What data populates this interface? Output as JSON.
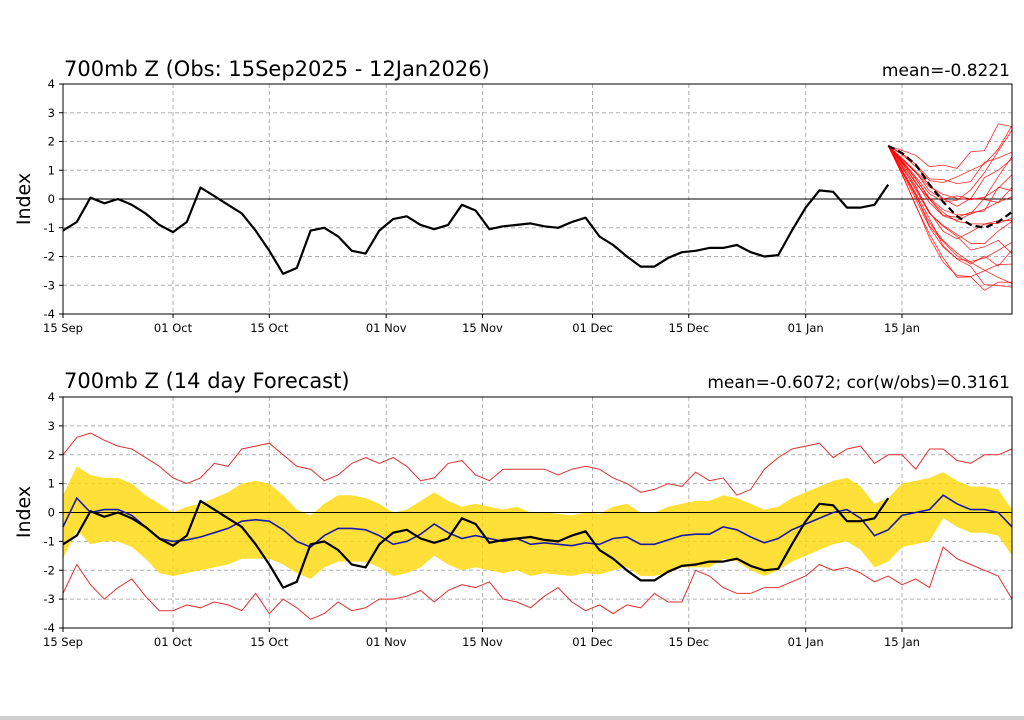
{
  "colors": {
    "obs": "#000000",
    "ens": "#ff0000",
    "envelope": "#e03030",
    "band": "#ffd700",
    "mean": "#1a1aa8",
    "grid": "#b0b0b0"
  },
  "x_tick_labels": [
    "15 Sep",
    "01 Oct",
    "15 Oct",
    "01 Nov",
    "15 Nov",
    "01 Dec",
    "15 Dec",
    "01 Jan",
    "15 Jan"
  ],
  "chart_data": [
    {
      "type": "line",
      "title": "700mb Z (Obs: 15Sep2025 - 12Jan2026)",
      "stat": "mean=-0.8221",
      "ylabel": "Index",
      "xlabel": "",
      "xlim_days": [
        0,
        138
      ],
      "ylim": [
        -4,
        4
      ],
      "yticks": [
        -4,
        -3,
        -2,
        -1,
        0,
        1,
        2,
        3,
        4
      ],
      "x_ticks_days": [
        0,
        16,
        30,
        47,
        61,
        77,
        91,
        108,
        122
      ],
      "grid": true,
      "series": [
        {
          "name": "observed",
          "style": "solid-black",
          "x": [
            0,
            2,
            4,
            6,
            8,
            10,
            12,
            14,
            16,
            18,
            20,
            22,
            24,
            26,
            28,
            30,
            32,
            34,
            36,
            38,
            40,
            42,
            44,
            46,
            48,
            50,
            52,
            54,
            56,
            58,
            60,
            62,
            64,
            66,
            68,
            70,
            72,
            74,
            76,
            78,
            80,
            82,
            84,
            86,
            88,
            90,
            92,
            94,
            96,
            98,
            100,
            102,
            104,
            106,
            108,
            110,
            112,
            114,
            116,
            118,
            120
          ],
          "values": [
            -1.1,
            -0.8,
            0.05,
            -0.15,
            0.0,
            -0.2,
            -0.5,
            -0.9,
            -1.15,
            -0.8,
            0.4,
            0.1,
            -0.2,
            -0.5,
            -1.1,
            -1.8,
            -2.6,
            -2.4,
            -1.1,
            -1.0,
            -1.3,
            -1.8,
            -1.9,
            -1.1,
            -0.7,
            -0.6,
            -0.9,
            -1.05,
            -0.9,
            -0.2,
            -0.4,
            -1.05,
            -0.95,
            -0.9,
            -0.85,
            -0.95,
            -1.0,
            -0.8,
            -0.65,
            -1.3,
            -1.6,
            -2.0,
            -2.35,
            -2.35,
            -2.05,
            -1.85,
            -1.8,
            -1.7,
            -1.7,
            -1.6,
            -1.85,
            -2.0,
            -1.95,
            -1.1,
            -0.3,
            0.3,
            0.25,
            -0.3,
            -0.3,
            -0.2,
            0.5
          ]
        },
        {
          "name": "ensemble-mean",
          "style": "dashed-black",
          "x": [
            120,
            122,
            124,
            126,
            128,
            130,
            132,
            134,
            136,
            138
          ],
          "values": [
            1.85,
            1.6,
            1.2,
            0.5,
            -0.1,
            -0.6,
            -0.9,
            -1.0,
            -0.8,
            -0.45
          ]
        }
      ],
      "ensemble_members_approx_count": 20,
      "ensemble_range_at_end": [
        -3.3,
        2.8
      ]
    },
    {
      "type": "line",
      "title": "700mb Z (14 day Forecast)",
      "stat": "mean=-0.6072; cor(w/obs)=0.3161",
      "ylabel": "Index",
      "xlabel": "",
      "xlim_days": [
        0,
        138
      ],
      "ylim": [
        -4,
        4
      ],
      "yticks": [
        -4,
        -3,
        -2,
        -1,
        0,
        1,
        2,
        3,
        4
      ],
      "x_ticks_days": [
        0,
        16,
        30,
        47,
        61,
        77,
        91,
        108,
        122
      ],
      "grid": true,
      "series": [
        {
          "name": "observed",
          "x": [
            0,
            2,
            4,
            6,
            8,
            10,
            12,
            14,
            16,
            18,
            20,
            22,
            24,
            26,
            28,
            30,
            32,
            34,
            36,
            38,
            40,
            42,
            44,
            46,
            48,
            50,
            52,
            54,
            56,
            58,
            60,
            62,
            64,
            66,
            68,
            70,
            72,
            74,
            76,
            78,
            80,
            82,
            84,
            86,
            88,
            90,
            92,
            94,
            96,
            98,
            100,
            102,
            104,
            106,
            108,
            110,
            112,
            114,
            116,
            118,
            120
          ],
          "values": [
            -1.1,
            -0.8,
            0.05,
            -0.15,
            0.0,
            -0.2,
            -0.5,
            -0.9,
            -1.15,
            -0.8,
            0.4,
            0.1,
            -0.2,
            -0.5,
            -1.1,
            -1.8,
            -2.6,
            -2.4,
            -1.1,
            -1.0,
            -1.3,
            -1.8,
            -1.9,
            -1.1,
            -0.7,
            -0.6,
            -0.9,
            -1.05,
            -0.9,
            -0.2,
            -0.4,
            -1.05,
            -0.95,
            -0.9,
            -0.85,
            -0.95,
            -1.0,
            -0.8,
            -0.65,
            -1.3,
            -1.6,
            -2.0,
            -2.35,
            -2.35,
            -2.05,
            -1.85,
            -1.8,
            -1.7,
            -1.7,
            -1.6,
            -1.85,
            -2.0,
            -1.95,
            -1.1,
            -0.3,
            0.3,
            0.25,
            -0.3,
            -0.3,
            -0.2,
            0.5
          ]
        },
        {
          "name": "forecast-mean",
          "x": [
            0,
            2,
            4,
            6,
            8,
            10,
            12,
            14,
            16,
            18,
            20,
            22,
            24,
            26,
            28,
            30,
            32,
            34,
            36,
            38,
            40,
            42,
            44,
            46,
            48,
            50,
            52,
            54,
            56,
            58,
            60,
            62,
            64,
            66,
            68,
            70,
            72,
            74,
            76,
            78,
            80,
            82,
            84,
            86,
            88,
            90,
            92,
            94,
            96,
            98,
            100,
            102,
            104,
            106,
            108,
            110,
            112,
            114,
            116,
            118,
            120,
            122,
            124,
            126,
            128,
            130,
            132,
            134,
            136,
            138
          ],
          "values": [
            -0.5,
            0.5,
            0.0,
            0.1,
            0.1,
            -0.1,
            -0.5,
            -0.9,
            -1.0,
            -0.95,
            -0.85,
            -0.7,
            -0.55,
            -0.3,
            -0.25,
            -0.3,
            -0.6,
            -1.0,
            -1.2,
            -0.8,
            -0.55,
            -0.55,
            -0.6,
            -0.8,
            -1.1,
            -1.0,
            -0.75,
            -0.4,
            -0.7,
            -0.9,
            -0.8,
            -0.9,
            -1.0,
            -0.9,
            -1.1,
            -1.05,
            -1.1,
            -1.15,
            -1.05,
            -1.1,
            -0.9,
            -0.85,
            -1.1,
            -1.1,
            -0.95,
            -0.8,
            -0.75,
            -0.75,
            -0.5,
            -0.6,
            -0.85,
            -1.05,
            -0.9,
            -0.6,
            -0.4,
            -0.2,
            0.0,
            0.1,
            -0.2,
            -0.8,
            -0.6,
            -0.1,
            0.0,
            0.1,
            0.6,
            0.3,
            0.1,
            0.1,
            0.0,
            -0.5
          ]
        },
        {
          "name": "spread-upper",
          "x": [
            0,
            2,
            4,
            6,
            8,
            10,
            12,
            14,
            16,
            18,
            20,
            22,
            24,
            26,
            28,
            30,
            32,
            34,
            36,
            38,
            40,
            42,
            44,
            46,
            48,
            50,
            52,
            54,
            56,
            58,
            60,
            62,
            64,
            66,
            68,
            70,
            72,
            74,
            76,
            78,
            80,
            82,
            84,
            86,
            88,
            90,
            92,
            94,
            96,
            98,
            100,
            102,
            104,
            106,
            108,
            110,
            112,
            114,
            116,
            118,
            120,
            122,
            124,
            126,
            128,
            130,
            132,
            134,
            136,
            138
          ],
          "values": [
            0.6,
            1.6,
            1.3,
            1.2,
            1.2,
            1.0,
            0.6,
            0.3,
            0.0,
            0.2,
            0.3,
            0.5,
            0.7,
            1.0,
            1.1,
            1.0,
            0.6,
            0.1,
            -0.1,
            0.3,
            0.6,
            0.6,
            0.5,
            0.3,
            0.0,
            0.1,
            0.4,
            0.7,
            0.4,
            0.2,
            0.3,
            0.2,
            0.1,
            0.2,
            0.0,
            0.0,
            -0.05,
            -0.1,
            0.0,
            -0.05,
            0.2,
            0.3,
            0.0,
            0.0,
            0.2,
            0.3,
            0.4,
            0.4,
            0.6,
            0.5,
            0.3,
            0.1,
            0.2,
            0.5,
            0.7,
            0.9,
            1.1,
            1.2,
            0.9,
            0.3,
            0.5,
            1.0,
            1.1,
            1.2,
            1.4,
            1.1,
            0.9,
            0.9,
            0.8,
            0.1
          ]
        },
        {
          "name": "spread-lower",
          "x": [
            0,
            2,
            4,
            6,
            8,
            10,
            12,
            14,
            16,
            18,
            20,
            22,
            24,
            26,
            28,
            30,
            32,
            34,
            36,
            38,
            40,
            42,
            44,
            46,
            48,
            50,
            52,
            54,
            56,
            58,
            60,
            62,
            64,
            66,
            68,
            70,
            72,
            74,
            76,
            78,
            80,
            82,
            84,
            86,
            88,
            90,
            92,
            94,
            96,
            98,
            100,
            102,
            104,
            106,
            108,
            110,
            112,
            114,
            116,
            118,
            120,
            122,
            124,
            126,
            128,
            130,
            132,
            134,
            136,
            138
          ],
          "values": [
            -1.6,
            -0.6,
            -1.1,
            -1.0,
            -1.0,
            -1.2,
            -1.6,
            -2.1,
            -2.2,
            -2.1,
            -2.0,
            -1.9,
            -1.8,
            -1.6,
            -1.6,
            -1.6,
            -1.8,
            -2.1,
            -2.3,
            -1.9,
            -1.7,
            -1.7,
            -1.7,
            -1.9,
            -2.2,
            -2.1,
            -1.9,
            -1.5,
            -1.8,
            -2.0,
            -1.9,
            -2.0,
            -2.1,
            -2.0,
            -2.2,
            -2.1,
            -2.15,
            -2.2,
            -2.1,
            -2.15,
            -2.0,
            -1.9,
            -2.2,
            -2.2,
            -2.1,
            -1.9,
            -1.9,
            -1.9,
            -1.6,
            -1.7,
            -2.0,
            -2.2,
            -2.0,
            -1.7,
            -1.5,
            -1.3,
            -1.1,
            -1.0,
            -1.3,
            -1.9,
            -1.7,
            -1.2,
            -1.1,
            -1.0,
            -0.2,
            -0.5,
            -0.7,
            -0.7,
            -0.8,
            -1.5
          ]
        },
        {
          "name": "envelope-upper",
          "x": [
            0,
            2,
            4,
            6,
            8,
            10,
            12,
            14,
            16,
            18,
            20,
            22,
            24,
            26,
            28,
            30,
            32,
            34,
            36,
            38,
            40,
            42,
            44,
            46,
            48,
            50,
            52,
            54,
            56,
            58,
            60,
            62,
            64,
            66,
            68,
            70,
            72,
            74,
            76,
            78,
            80,
            82,
            84,
            86,
            88,
            90,
            92,
            94,
            96,
            98,
            100,
            102,
            104,
            106,
            108,
            110,
            112,
            114,
            116,
            118,
            120,
            122,
            124,
            126,
            128,
            130,
            132,
            134,
            136,
            138
          ],
          "values": [
            2.0,
            2.6,
            2.75,
            2.5,
            2.3,
            2.2,
            1.9,
            1.6,
            1.2,
            1.0,
            1.2,
            1.7,
            1.6,
            2.2,
            2.3,
            2.4,
            2.0,
            1.6,
            1.5,
            1.1,
            1.3,
            1.7,
            1.9,
            1.7,
            1.9,
            1.6,
            1.1,
            1.2,
            1.7,
            1.8,
            1.3,
            1.1,
            1.5,
            1.5,
            1.5,
            1.5,
            1.3,
            1.5,
            1.6,
            1.5,
            1.2,
            1.0,
            0.7,
            0.8,
            1.0,
            0.9,
            1.4,
            1.1,
            1.2,
            0.6,
            0.8,
            1.5,
            1.9,
            2.2,
            2.3,
            2.4,
            1.9,
            2.2,
            2.3,
            1.7,
            2.0,
            2.0,
            1.5,
            2.2,
            2.2,
            1.8,
            1.7,
            2.0,
            2.0,
            2.2
          ]
        },
        {
          "name": "envelope-lower",
          "x": [
            0,
            2,
            4,
            6,
            8,
            10,
            12,
            14,
            16,
            18,
            20,
            22,
            24,
            26,
            28,
            30,
            32,
            34,
            36,
            38,
            40,
            42,
            44,
            46,
            48,
            50,
            52,
            54,
            56,
            58,
            60,
            62,
            64,
            66,
            68,
            70,
            72,
            74,
            76,
            78,
            80,
            82,
            84,
            86,
            88,
            90,
            92,
            94,
            96,
            98,
            100,
            102,
            104,
            106,
            108,
            110,
            112,
            114,
            116,
            118,
            120,
            122,
            124,
            126,
            128,
            130,
            132,
            134,
            136,
            138
          ],
          "values": [
            -2.8,
            -1.8,
            -2.5,
            -3.0,
            -2.6,
            -2.3,
            -2.9,
            -3.4,
            -3.4,
            -3.2,
            -3.3,
            -3.1,
            -3.2,
            -3.4,
            -2.8,
            -3.5,
            -3.0,
            -3.3,
            -3.7,
            -3.5,
            -3.1,
            -3.4,
            -3.3,
            -3.0,
            -3.0,
            -2.9,
            -2.7,
            -3.1,
            -2.7,
            -2.5,
            -2.6,
            -2.4,
            -3.0,
            -3.1,
            -3.3,
            -2.9,
            -2.6,
            -3.1,
            -3.4,
            -3.2,
            -3.5,
            -3.2,
            -3.3,
            -2.8,
            -3.1,
            -3.1,
            -2.0,
            -2.2,
            -2.6,
            -2.8,
            -2.8,
            -2.6,
            -2.6,
            -2.4,
            -2.2,
            -1.8,
            -2.0,
            -1.9,
            -2.1,
            -2.4,
            -2.2,
            -2.5,
            -2.3,
            -2.6,
            -1.2,
            -1.6,
            -1.8,
            -2.0,
            -2.2,
            -3.0
          ]
        }
      ]
    }
  ]
}
